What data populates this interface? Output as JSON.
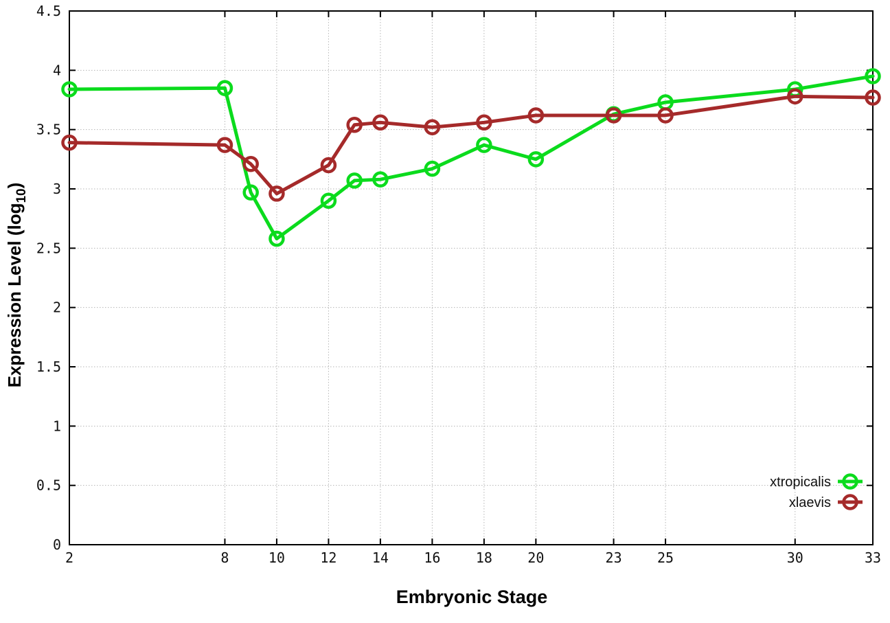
{
  "chart_data": {
    "type": "line",
    "title": "",
    "xlabel": "Embryonic Stage",
    "ylabel": "Expression Level (log10)",
    "ylabel_parts": {
      "prefix": "Expression Level (log",
      "subscript": "10",
      "suffix": ")"
    },
    "x": [
      2,
      8,
      9,
      10,
      12,
      13,
      14,
      16,
      18,
      20,
      23,
      25,
      30,
      33
    ],
    "series": [
      {
        "name": "xtropicalis",
        "color": "#0bdb1d",
        "marker": "open-circle",
        "values": [
          3.84,
          3.85,
          2.97,
          2.58,
          2.9,
          3.07,
          3.08,
          3.17,
          3.37,
          3.25,
          3.63,
          3.73,
          3.84,
          3.95
        ]
      },
      {
        "name": "xlaevis",
        "color": "#a52a2a",
        "marker": "open-circle",
        "values": [
          3.39,
          3.37,
          3.21,
          2.96,
          3.2,
          3.54,
          3.56,
          3.52,
          3.56,
          3.62,
          3.62,
          3.62,
          3.78,
          3.77
        ]
      }
    ],
    "xlim": [
      2,
      33
    ],
    "ylim": [
      0,
      4.5
    ],
    "x_ticks": [
      {
        "value": 2,
        "label": "2"
      },
      {
        "value": 8,
        "label": "8"
      },
      {
        "value": 10,
        "label": "10"
      },
      {
        "value": 12,
        "label": "12"
      },
      {
        "value": 14,
        "label": "14"
      },
      {
        "value": 16,
        "label": "16"
      },
      {
        "value": 18,
        "label": "18"
      },
      {
        "value": 20,
        "label": "20"
      },
      {
        "value": 23,
        "label": "23"
      },
      {
        "value": 25,
        "label": "25"
      },
      {
        "value": 30,
        "label": "30"
      },
      {
        "value": 33,
        "label": "33"
      }
    ],
    "y_ticks": [
      {
        "value": 0,
        "label": "0"
      },
      {
        "value": 0.5,
        "label": "0.5"
      },
      {
        "value": 1,
        "label": "1"
      },
      {
        "value": 1.5,
        "label": "1.5"
      },
      {
        "value": 2,
        "label": "2"
      },
      {
        "value": 2.5,
        "label": "2.5"
      },
      {
        "value": 3,
        "label": "3"
      },
      {
        "value": 3.5,
        "label": "3.5"
      },
      {
        "value": 4,
        "label": "4"
      },
      {
        "value": 4.5,
        "label": "4.5"
      }
    ],
    "grid": true,
    "legend_position": "bottom-right",
    "legend_entries": [
      "xtropicalis",
      "xlaevis"
    ],
    "background": "#ffffff",
    "grid_color": "#b5b5b5",
    "axis_color": "#000000",
    "text_color": "#111111"
  }
}
